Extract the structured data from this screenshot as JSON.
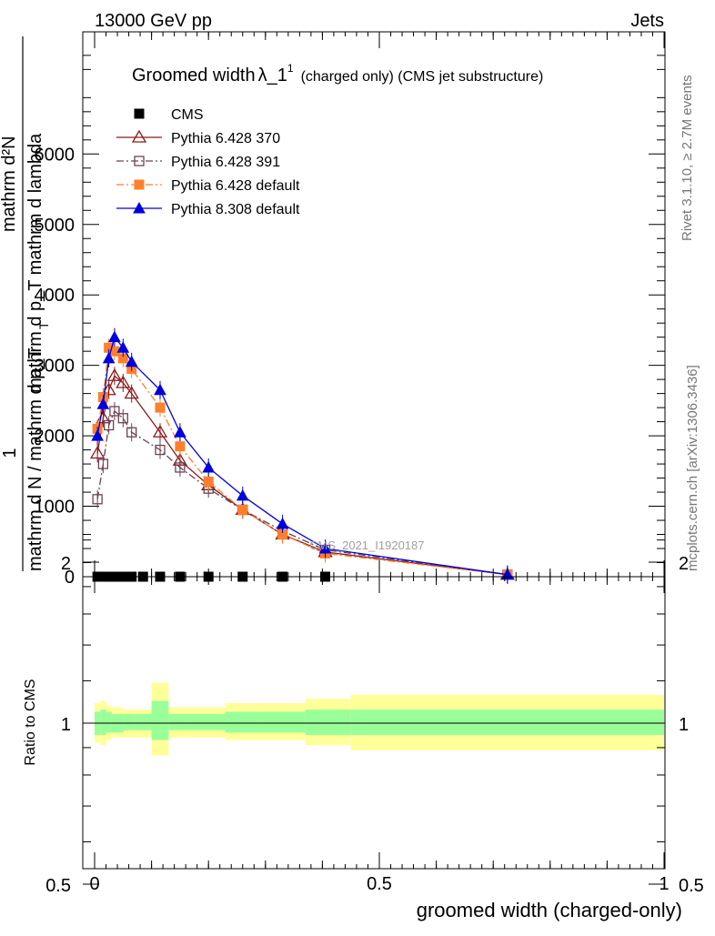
{
  "header": {
    "left": "13000 GeV pp",
    "right": "Jets"
  },
  "plot": {
    "title_main": "Groomed width",
    "title_lambda": "λ_1",
    "title_sup": "1",
    "title_suffix": "(charged only) (CMS jet substructure)",
    "watermark": "CMS_2021_I1920187",
    "ylabel_prefix": "1",
    "ylabel_denominator": "mathrm d N / mathrm d p_T",
    "ylabel_sub": "T",
    "ylabel_numerator": "mathrm d²N",
    "ylabel_numerator2": "mathrm d p_T mathrm d lambda",
    "ratio_ylabel": "Ratio to CMS",
    "xlabel": "groomed width (charged-only)",
    "side_label_top": "Rivet 3.1.10, ≥ 2.7M events",
    "side_label_bottom": "mcplots.cern.ch [arXiv:1306.3436]"
  },
  "legend": [
    {
      "label": "CMS",
      "color": "#000000",
      "marker": "square-filled",
      "line": "none"
    },
    {
      "label": "Pythia 6.428 370",
      "color": "#8b1a1a",
      "marker": "triangle-open",
      "line": "solid"
    },
    {
      "label": "Pythia 6.428 391",
      "color": "#6b4455",
      "marker": "square-open",
      "line": "dashdot"
    },
    {
      "label": "Pythia 6.428 default",
      "color": "#ff7f2a",
      "marker": "square-filled",
      "line": "dashdot"
    },
    {
      "label": "Pythia 8.308 default",
      "color": "#0000dd",
      "marker": "triangle-filled",
      "line": "solid"
    }
  ],
  "chart_data": [
    {
      "type": "line",
      "title": "Groomed width λ_1^1 (charged only) (CMS jet substructure)",
      "xlabel": "groomed width (charged-only)",
      "ylabel": "1/(mathrm d N / mathrm d p_T) mathrm d²N/(mathrm d p_T mathrm d lambda)",
      "xlim": [
        0,
        1
      ],
      "ylim": [
        0,
        7500
      ],
      "xticks": [
        {
          "v": 0,
          "label": "0"
        },
        {
          "v": 0.5,
          "label": "0.5"
        },
        {
          "v": 1,
          "label": "1"
        }
      ],
      "yticks": [
        {
          "v": 0,
          "label": "0"
        },
        {
          "v": 1000,
          "label": "1000"
        },
        {
          "v": 2000,
          "label": "2000"
        },
        {
          "v": 3000,
          "label": "3000"
        },
        {
          "v": 4000,
          "label": "4000"
        },
        {
          "v": 5000,
          "label": "5000"
        },
        {
          "v": 6000,
          "label": "6000"
        }
      ],
      "x": [
        0.005,
        0.015,
        0.025,
        0.035,
        0.05,
        0.065,
        0.085,
        0.115,
        0.15,
        0.2,
        0.26,
        0.33,
        0.405,
        0.725
      ],
      "series": [
        {
          "name": "CMS",
          "color": "#000000",
          "marker": "square-filled",
          "line": "none",
          "values": [
            0,
            0,
            0,
            0,
            0,
            0,
            0,
            0,
            0,
            0,
            0,
            0,
            0,
            null
          ]
        },
        {
          "name": "Pythia 6.428 370",
          "color": "#8b1a1a",
          "marker": "triangle-open",
          "line": "solid",
          "values": [
            1750,
            2250,
            2650,
            2850,
            2750,
            2600,
            null,
            2050,
            1650,
            1300,
            950,
            600,
            350,
            30
          ]
        },
        {
          "name": "Pythia 6.428 391",
          "color": "#6b4455",
          "marker": "square-open",
          "line": "dashdot",
          "values": [
            1100,
            1600,
            2150,
            2350,
            2250,
            2050,
            null,
            1800,
            1550,
            1250,
            950,
            650,
            380,
            30
          ]
        },
        {
          "name": "Pythia 6.428 default",
          "color": "#ff7f2a",
          "marker": "square-filled",
          "line": "dashdot",
          "values": [
            2100,
            2550,
            3250,
            3200,
            3100,
            2950,
            null,
            2400,
            1850,
            1350,
            950,
            600,
            330,
            30
          ]
        },
        {
          "name": "Pythia 8.308 default",
          "color": "#0000dd",
          "marker": "triangle-filled",
          "line": "solid",
          "values": [
            2000,
            2450,
            3100,
            3400,
            3250,
            3050,
            null,
            2650,
            2050,
            1550,
            1150,
            750,
            400,
            30
          ]
        }
      ]
    },
    {
      "type": "area",
      "title": "",
      "ylabel": "Ratio to CMS",
      "xlabel": "groomed width (charged-only)",
      "xlim": [
        0,
        1
      ],
      "ylim": [
        0.4,
        2.3
      ],
      "log_y": true,
      "yticks": [
        {
          "v": 0.5,
          "label": "0.5"
        },
        {
          "v": 1,
          "label": "1"
        },
        {
          "v": 2,
          "label": "2"
        }
      ],
      "reference_line": 1,
      "bins": [
        {
          "x0": 0.0,
          "x1": 0.01,
          "inner": [
            0.95,
            1.05
          ],
          "outer": [
            0.92,
            1.09
          ]
        },
        {
          "x0": 0.01,
          "x1": 0.02,
          "inner": [
            0.95,
            1.06
          ],
          "outer": [
            0.91,
            1.1
          ]
        },
        {
          "x0": 0.02,
          "x1": 0.03,
          "inner": [
            0.96,
            1.05
          ],
          "outer": [
            0.93,
            1.08
          ]
        },
        {
          "x0": 0.03,
          "x1": 0.05,
          "inner": [
            0.96,
            1.04
          ],
          "outer": [
            0.94,
            1.07
          ]
        },
        {
          "x0": 0.05,
          "x1": 0.07,
          "inner": [
            0.97,
            1.04
          ],
          "outer": [
            0.94,
            1.06
          ]
        },
        {
          "x0": 0.07,
          "x1": 0.1,
          "inner": [
            0.97,
            1.04
          ],
          "outer": [
            0.94,
            1.06
          ]
        },
        {
          "x0": 0.1,
          "x1": 0.13,
          "inner": [
            0.93,
            1.1
          ],
          "outer": [
            0.87,
            1.19
          ]
        },
        {
          "x0": 0.13,
          "x1": 0.17,
          "inner": [
            0.97,
            1.04
          ],
          "outer": [
            0.94,
            1.07
          ]
        },
        {
          "x0": 0.17,
          "x1": 0.23,
          "inner": [
            0.97,
            1.04
          ],
          "outer": [
            0.94,
            1.07
          ]
        },
        {
          "x0": 0.23,
          "x1": 0.29,
          "inner": [
            0.96,
            1.05
          ],
          "outer": [
            0.93,
            1.09
          ]
        },
        {
          "x0": 0.29,
          "x1": 0.37,
          "inner": [
            0.96,
            1.05
          ],
          "outer": [
            0.93,
            1.09
          ]
        },
        {
          "x0": 0.37,
          "x1": 0.45,
          "inner": [
            0.95,
            1.06
          ],
          "outer": [
            0.91,
            1.11
          ]
        },
        {
          "x0": 0.45,
          "x1": 1.0,
          "inner": [
            0.95,
            1.06
          ],
          "outer": [
            0.89,
            1.13
          ]
        }
      ],
      "band_colors": {
        "inner": "#99ff99",
        "outer": "#ffff99"
      }
    }
  ]
}
